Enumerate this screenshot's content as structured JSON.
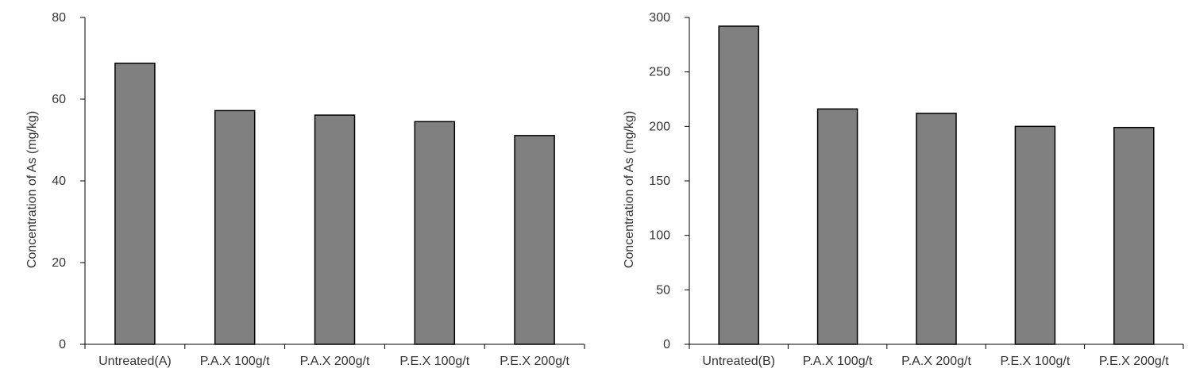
{
  "chart_data": [
    {
      "type": "bar",
      "title": "",
      "xlabel": "",
      "ylabel": "Concentration of As (mg/kg)",
      "ylim": [
        0,
        80
      ],
      "yticks": [
        0,
        20,
        40,
        60,
        80
      ],
      "grid": false,
      "categories": [
        "Untreated(A)",
        "P.A.X 100g/t",
        "P.A.X 200g/t",
        "P.E.X 100g/t",
        "P.E.X 200g/t"
      ],
      "values": [
        68.8,
        57.2,
        56.1,
        54.5,
        51.1
      ],
      "bar_color": "#808080"
    },
    {
      "type": "bar",
      "title": "",
      "xlabel": "",
      "ylabel": "Concentration of As (mg/kg)",
      "ylim": [
        0,
        300
      ],
      "yticks": [
        0,
        50,
        100,
        150,
        200,
        250,
        300
      ],
      "grid": false,
      "categories": [
        "Untreated(B)",
        "P.A.X 100g/t",
        "P.A.X 200g/t",
        "P.E.X 100g/t",
        "P.E.X 200g/t"
      ],
      "values": [
        292,
        216,
        212,
        200,
        199
      ],
      "bar_color": "#808080"
    }
  ]
}
